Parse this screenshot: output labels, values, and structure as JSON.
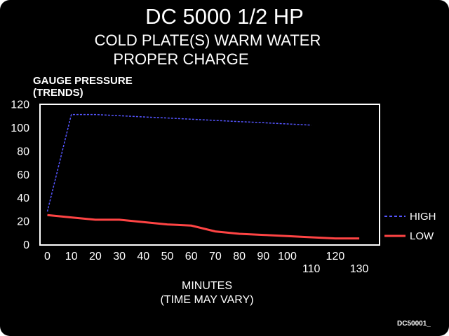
{
  "header": {
    "title": "DC 5000 1/2 HP",
    "subtitle_line1": "COLD PLATE(S) WARM WATER",
    "subtitle_line2": "PROPER CHARGE"
  },
  "figure_code": "DC50001_",
  "colors": {
    "background": "#000000",
    "text": "#ffffff",
    "high": "#5555ff",
    "low": "#ff4444"
  },
  "chart_data": {
    "type": "line",
    "ylabel_line1": "GAUGE PRESSURE",
    "ylabel_line2": "(TRENDS)",
    "xlabel_line1": "MINUTES",
    "xlabel_line2": "(TIME MAY VARY)",
    "ylim": [
      0,
      120
    ],
    "xlim": [
      0,
      130
    ],
    "yticks": [
      "0",
      "20",
      "40",
      "60",
      "80",
      "100",
      "120"
    ],
    "xticks": [
      "0",
      "10",
      "20",
      "30",
      "40",
      "50",
      "60",
      "70",
      "80",
      "90",
      "100",
      "110",
      "120",
      "130"
    ],
    "grid": false,
    "legend_position": "right",
    "series": [
      {
        "name": "HIGH",
        "style": "dashed",
        "x": [
          0,
          10,
          20,
          30,
          40,
          50,
          60,
          70,
          80,
          90,
          100,
          110
        ],
        "y": [
          28,
          111,
          111,
          110,
          109,
          108,
          107,
          106,
          105,
          104,
          103,
          102
        ]
      },
      {
        "name": "LOW",
        "style": "solid",
        "x": [
          0,
          10,
          20,
          30,
          40,
          50,
          60,
          70,
          80,
          90,
          100,
          110,
          120,
          130
        ],
        "y": [
          25,
          23,
          21,
          21,
          19,
          17,
          16,
          11,
          9,
          8,
          7,
          6,
          5,
          5
        ]
      }
    ]
  }
}
